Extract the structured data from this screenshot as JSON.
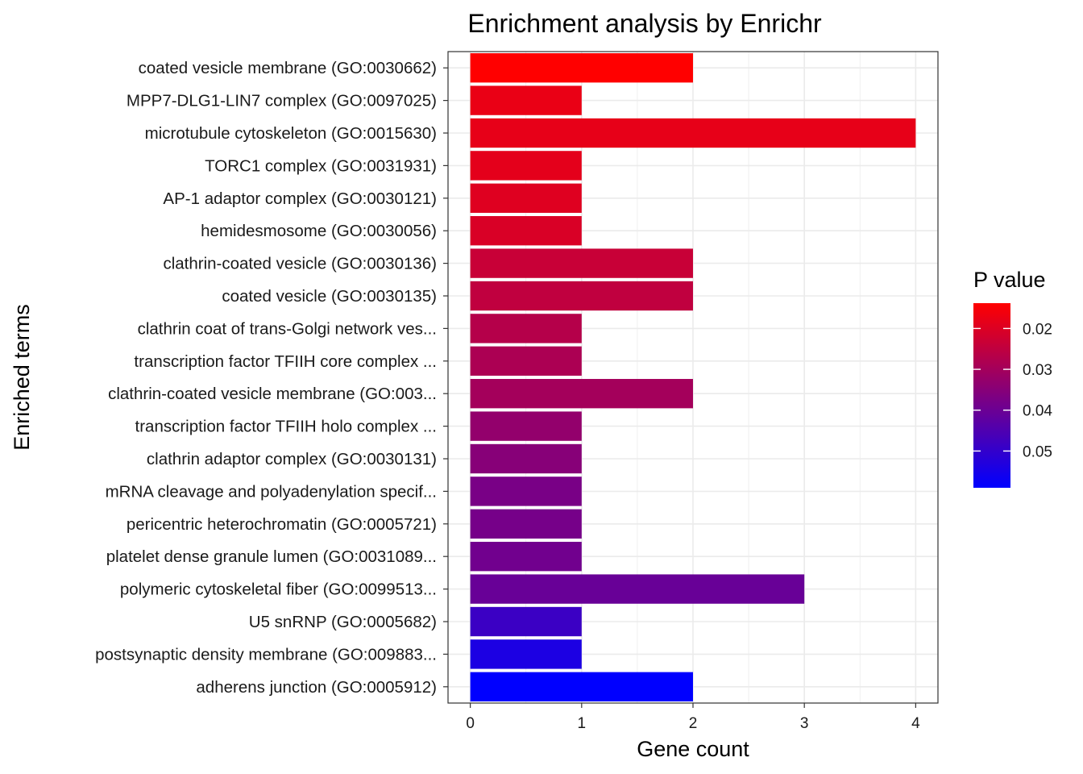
{
  "chart_data": {
    "type": "bar",
    "orientation": "horizontal",
    "title": "Enrichment analysis by Enrichr",
    "xlabel": "Gene count",
    "ylabel": "Enriched terms",
    "xlim": [
      -0.2,
      4.2
    ],
    "x_ticks": [
      0,
      1,
      2,
      3,
      4
    ],
    "grid": true,
    "categories": [
      "coated vesicle membrane (GO:0030662)",
      "MPP7-DLG1-LIN7 complex (GO:0097025)",
      "microtubule cytoskeleton (GO:0015630)",
      "TORC1 complex (GO:0031931)",
      "AP-1 adaptor complex (GO:0030121)",
      "hemidesmosome (GO:0030056)",
      "clathrin-coated vesicle (GO:0030136)",
      "coated vesicle (GO:0030135)",
      "clathrin coat of trans-Golgi network ves...",
      "transcription factor TFIIH core complex ...",
      "clathrin-coated vesicle membrane (GO:003...",
      "transcription factor TFIIH holo complex ...",
      "clathrin adaptor complex (GO:0030131)",
      "mRNA cleavage and polyadenylation specif...",
      "pericentric heterochromatin (GO:0005721)",
      "platelet dense granule lumen (GO:0031089...",
      "polymeric cytoskeletal fiber (GO:0099513...",
      "U5 snRNP (GO:0005682)",
      "postsynaptic density membrane (GO:009883...",
      "adherens junction (GO:0005912)"
    ],
    "values": [
      2,
      1,
      4,
      1,
      1,
      1,
      2,
      2,
      1,
      1,
      2,
      1,
      1,
      1,
      1,
      1,
      3,
      1,
      1,
      2
    ],
    "p_values": [
      0.0138,
      0.0175,
      0.018,
      0.0185,
      0.0195,
      0.0205,
      0.0235,
      0.025,
      0.027,
      0.0285,
      0.03,
      0.033,
      0.035,
      0.0375,
      0.038,
      0.039,
      0.0405,
      0.0485,
      0.054,
      0.059
    ],
    "color_scale": {
      "title": "P value",
      "low_color": "#ff0000",
      "high_color": "#0000ff",
      "range": [
        0.0138,
        0.059
      ],
      "ticks": [
        "0.02",
        "0.03",
        "0.04",
        "0.05"
      ],
      "tick_values": [
        0.02,
        0.03,
        0.04,
        0.05
      ]
    },
    "legend_position": "right"
  }
}
